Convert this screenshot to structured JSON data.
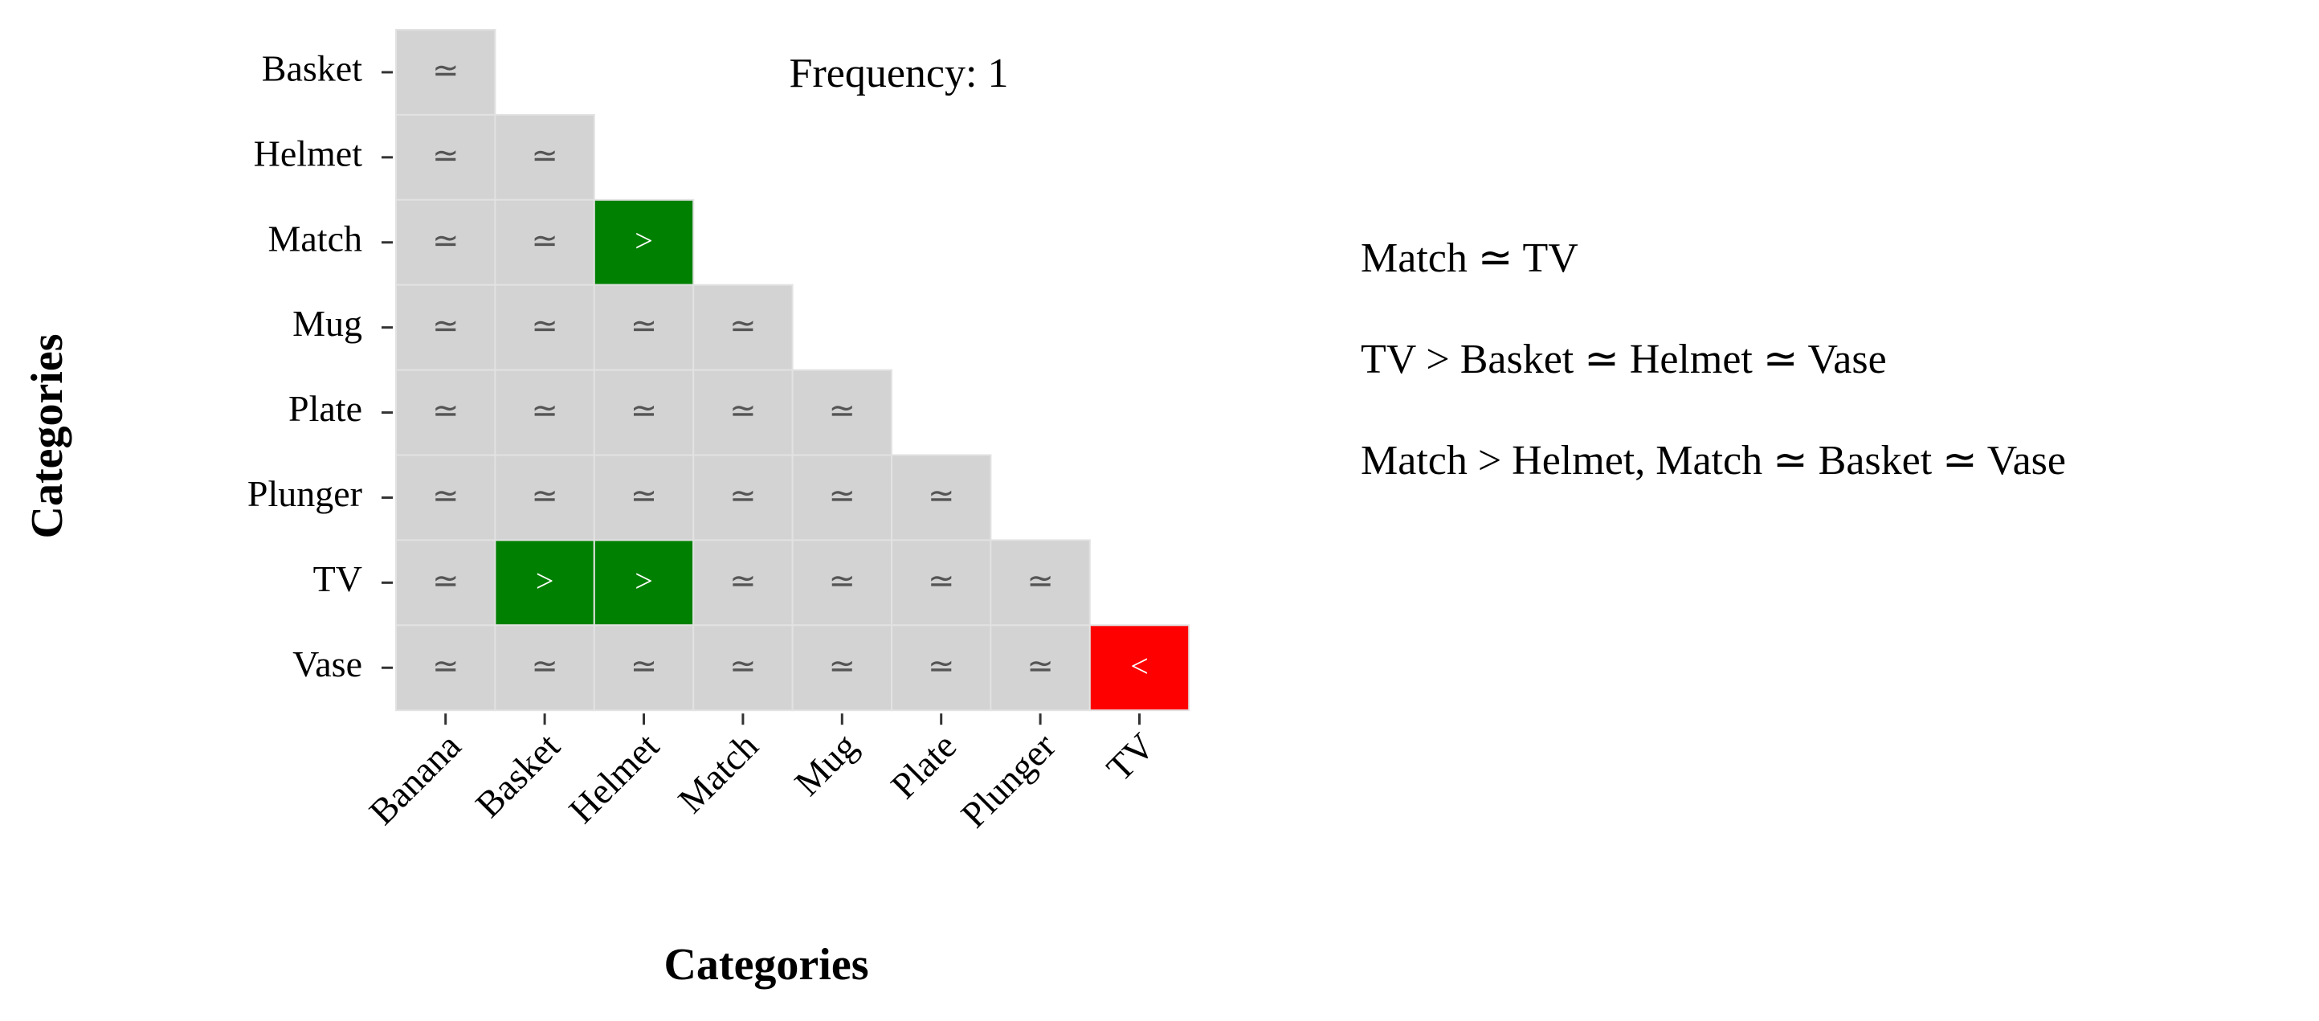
{
  "chart_data": {
    "type": "matrix",
    "annotation": "Frequency: 1",
    "x_label": "Categories",
    "y_label": "Categories",
    "x_categories": [
      "Banana",
      "Basket",
      "Helmet",
      "Match",
      "Mug",
      "Plate",
      "Plunger",
      "TV"
    ],
    "y_categories": [
      "Basket",
      "Helmet",
      "Match",
      "Mug",
      "Plate",
      "Plunger",
      "TV",
      "Vase"
    ],
    "cells": [
      [
        "≃",
        null,
        null,
        null,
        null,
        null,
        null,
        null
      ],
      [
        "≃",
        "≃",
        null,
        null,
        null,
        null,
        null,
        null
      ],
      [
        "≃",
        "≃",
        ">",
        null,
        null,
        null,
        null,
        null
      ],
      [
        "≃",
        "≃",
        "≃",
        "≃",
        null,
        null,
        null,
        null
      ],
      [
        "≃",
        "≃",
        "≃",
        "≃",
        "≃",
        null,
        null,
        null
      ],
      [
        "≃",
        "≃",
        "≃",
        "≃",
        "≃",
        "≃",
        null,
        null
      ],
      [
        "≃",
        ">",
        ">",
        "≃",
        "≃",
        "≃",
        "≃",
        null
      ],
      [
        "≃",
        "≃",
        "≃",
        "≃",
        "≃",
        "≃",
        "≃",
        "<"
      ]
    ],
    "symbol_colors": {
      "≃": "#d3d3d3",
      ">": "#008000",
      "<": "#ff0000"
    },
    "summary": [
      "Match ≃ TV",
      "TV > Basket ≃ Helmet ≃ Vase",
      "Match > Helmet, Match ≃ Basket ≃ Vase"
    ]
  }
}
